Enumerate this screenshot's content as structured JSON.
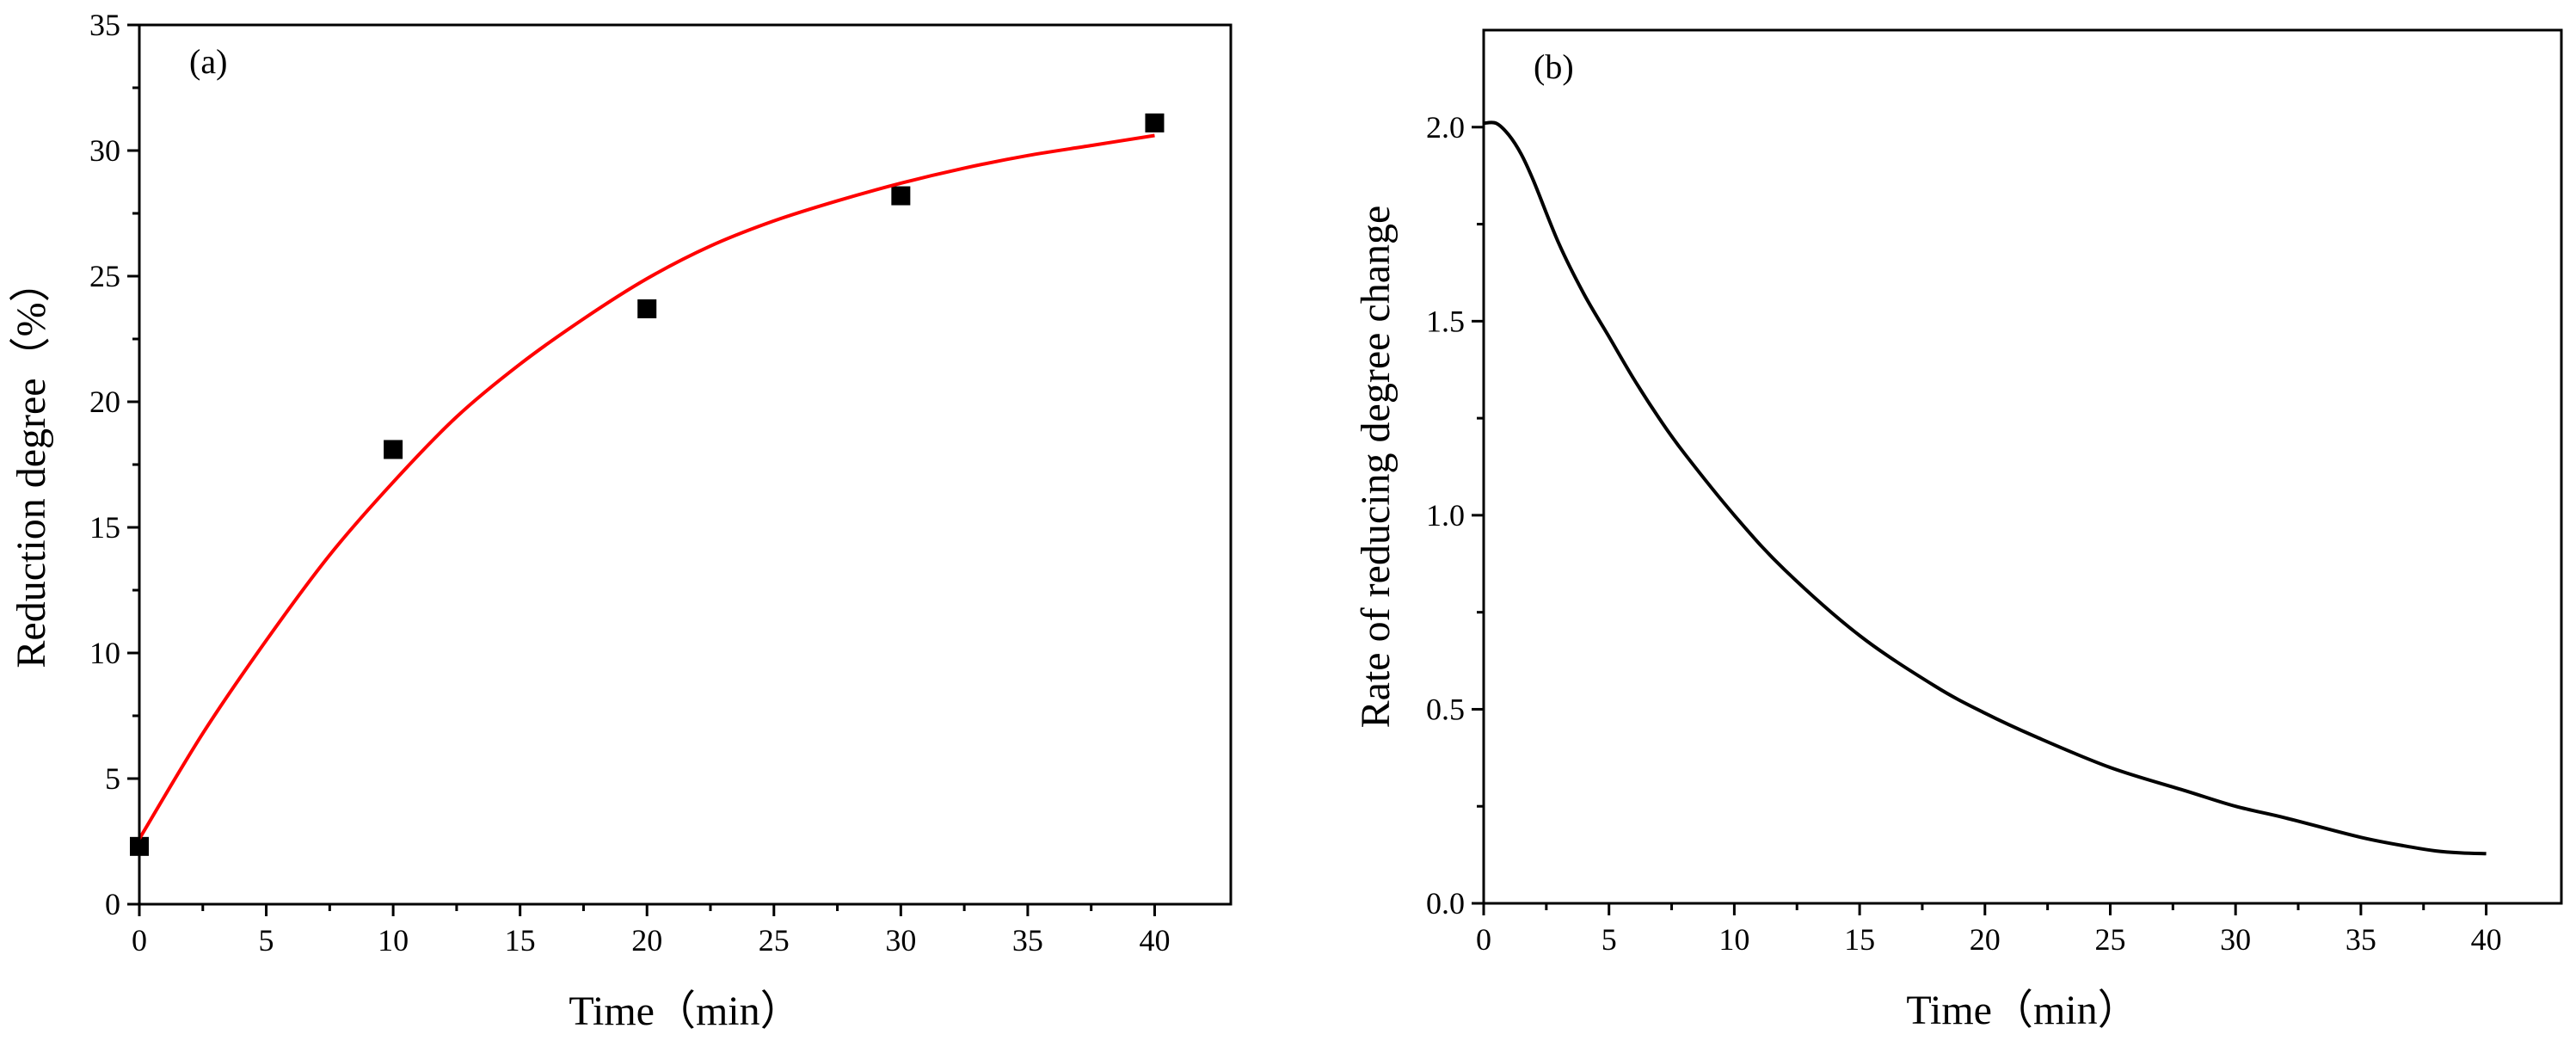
{
  "chart_data": [
    {
      "type": "scatter",
      "panel_label": "(a)",
      "xlabel": "Time（min）",
      "ylabel": "Reduction degree（%）",
      "xlim": [
        0,
        43
      ],
      "ylim": [
        0,
        35
      ],
      "xticks": [
        0,
        5,
        10,
        15,
        20,
        25,
        30,
        35,
        40
      ],
      "yticks": [
        0,
        5,
        10,
        15,
        20,
        25,
        30,
        35
      ],
      "grid": false,
      "series": [
        {
          "kind": "scatter",
          "marker": "square",
          "color": "#000000",
          "x": [
            0,
            10,
            20,
            30,
            40
          ],
          "y": [
            2.3,
            18.1,
            23.7,
            28.2,
            31.1
          ]
        },
        {
          "kind": "line",
          "color": "#ff0000",
          "x": [
            0,
            2.5,
            5,
            7.5,
            10,
            12.5,
            15,
            17.5,
            20,
            22.5,
            25,
            27.5,
            30,
            32.5,
            35,
            37.5,
            40
          ],
          "y": [
            2.6,
            6.8,
            10.5,
            13.9,
            16.8,
            19.4,
            21.5,
            23.3,
            24.9,
            26.2,
            27.2,
            28.0,
            28.7,
            29.3,
            29.8,
            30.2,
            30.6
          ]
        }
      ]
    },
    {
      "type": "line",
      "panel_label": "(b)",
      "xlabel": "Time（min）",
      "ylabel": "Rate of reducing degree change",
      "xlim": [
        0,
        43
      ],
      "ylim": [
        0,
        2.25
      ],
      "xticks": [
        0,
        5,
        10,
        15,
        20,
        25,
        30,
        35,
        40
      ],
      "yticks": [
        "0.0",
        "0.5",
        "1.0",
        "1.5",
        "2.0"
      ],
      "grid": false,
      "series": [
        {
          "kind": "line",
          "color": "#000000",
          "x": [
            0,
            0.5,
            1,
            1.5,
            2,
            3,
            4,
            5,
            6,
            7,
            8,
            10,
            12,
            15,
            18,
            20,
            22,
            25,
            28,
            30,
            32,
            35,
            37,
            38,
            39,
            40
          ],
          "y": [
            2.01,
            2.01,
            1.98,
            1.93,
            1.86,
            1.7,
            1.57,
            1.46,
            1.35,
            1.25,
            1.16,
            1.0,
            0.86,
            0.69,
            0.56,
            0.49,
            0.43,
            0.35,
            0.29,
            0.25,
            0.22,
            0.17,
            0.145,
            0.135,
            0.13,
            0.128
          ]
        }
      ]
    }
  ]
}
